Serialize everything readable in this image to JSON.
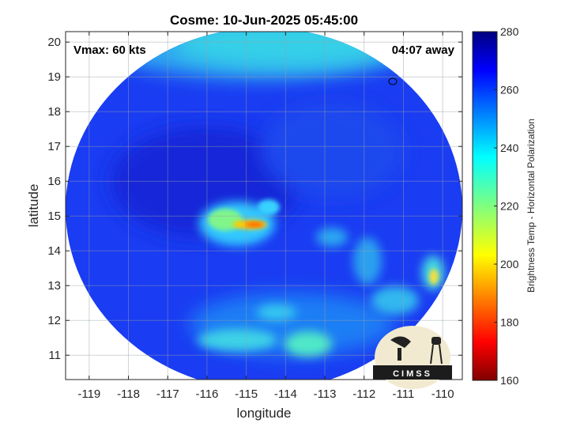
{
  "chart_data": {
    "type": "heatmap",
    "title": "Cosme: 10-Jun-2025 05:45:00",
    "xlabel": "longitude",
    "ylabel": "latitude",
    "xlim": [
      -119.6,
      -109.5
    ],
    "ylim": [
      10.3,
      20.3
    ],
    "x_ticks": [
      "-119",
      "-118",
      "-117",
      "-116",
      "-115",
      "-114",
      "-113",
      "-112",
      "-111",
      "-110"
    ],
    "y_ticks": [
      "11",
      "12",
      "13",
      "14",
      "15",
      "16",
      "17",
      "18",
      "19",
      "20"
    ],
    "grid": true,
    "annotations": {
      "vmax": "Vmax: 60 kts",
      "away": "04:07 away"
    },
    "colorbar": {
      "label": "Brightness Temp - Horizontal Polarization",
      "range": [
        160,
        280
      ],
      "ticks": [
        "160",
        "180",
        "200",
        "220",
        "240",
        "260",
        "280"
      ],
      "colormap": "jet"
    },
    "swath": {
      "center": [
        -114.5,
        14.8
      ],
      "background_value": 262
    },
    "features": [
      {
        "name": "inner-core-warm-band",
        "lon": -114.9,
        "lat": 14.6,
        "value": 198
      },
      {
        "name": "inner-core-cyan-region",
        "lon": -115.2,
        "lat": 14.8,
        "value": 235
      },
      {
        "name": "eastern-convection",
        "lon": -110.0,
        "lat": 13.2,
        "value": 212
      },
      {
        "name": "southern-rainbands",
        "lon": -113.5,
        "lat": 11.5,
        "value": 240
      },
      {
        "name": "northern-cyan-edge",
        "lon": -113.5,
        "lat": 19.6,
        "value": 242
      }
    ],
    "logo_text": "CIMSS"
  }
}
